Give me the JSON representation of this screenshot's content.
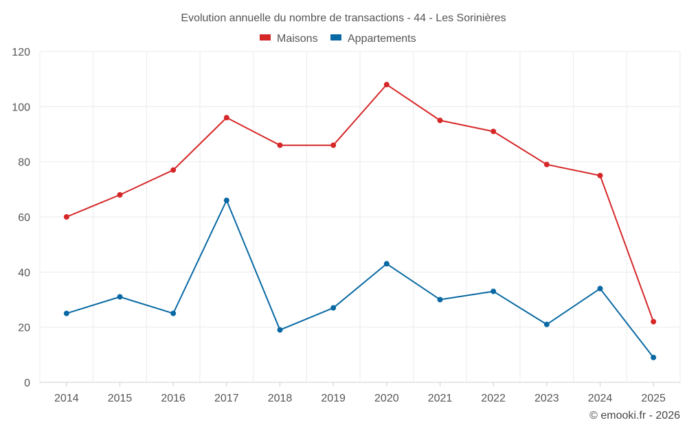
{
  "chart_data": {
    "type": "line",
    "title": "Evolution annuelle du nombre de transactions - 44 - Les Sorinières",
    "x": [
      "2014",
      "2015",
      "2016",
      "2017",
      "2018",
      "2019",
      "2020",
      "2021",
      "2022",
      "2023",
      "2024",
      "2025"
    ],
    "yticks": [
      "0",
      "20",
      "40",
      "60",
      "80",
      "100",
      "120"
    ],
    "ylim": [
      0,
      120
    ],
    "grid": true,
    "legend_position": "top-center",
    "series": [
      {
        "name": "Maisons",
        "color": "#d62728",
        "values": [
          60,
          68,
          77,
          96,
          86,
          86,
          108,
          95,
          91,
          79,
          75,
          22
        ]
      },
      {
        "name": "Appartements",
        "color": "#0868a3",
        "values": [
          25,
          31,
          25,
          66,
          19,
          27,
          43,
          30,
          33,
          21,
          34,
          9
        ]
      }
    ],
    "credit": "© emooki.fr - 2026"
  }
}
